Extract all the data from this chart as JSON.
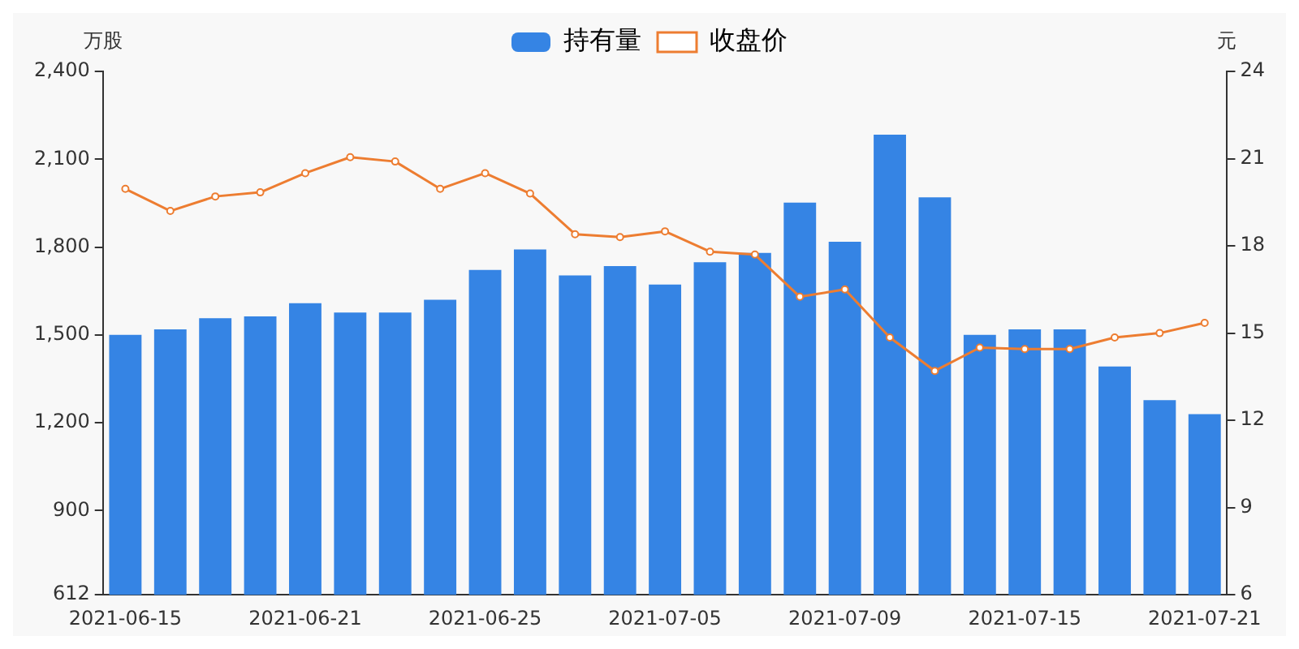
{
  "chart_data": {
    "type": "bar",
    "ylabel": "万股",
    "y2label": "元",
    "categories": [
      "2021-06-15",
      null,
      null,
      null,
      "2021-06-21",
      null,
      null,
      null,
      "2021-06-25",
      null,
      null,
      null,
      "2021-07-05",
      null,
      null,
      null,
      "2021-07-09",
      null,
      null,
      null,
      "2021-07-15",
      null,
      null,
      null,
      "2021-07-21"
    ],
    "series": [
      {
        "name": "持有量",
        "color": "#3584e4",
        "values": [
          1500,
          1519,
          1557,
          1563,
          1608,
          1576,
          1576,
          1620,
          1722,
          1792,
          1703,
          1735,
          1672,
          1748,
          1780,
          1952,
          1818,
          2184,
          1970,
          1500,
          1519,
          1519,
          1392,
          1277,
          1229
        ]
      },
      {
        "name": "收盘价",
        "type": "line",
        "axis": "y2",
        "color": "#ed7d31",
        "marker": "circle",
        "values": [
          19.96,
          19.2,
          19.7,
          19.84,
          20.5,
          21.05,
          20.9,
          19.96,
          20.5,
          19.8,
          18.4,
          18.3,
          18.5,
          17.8,
          17.7,
          16.25,
          16.5,
          14.85,
          13.7,
          14.5,
          14.45,
          14.45,
          14.85,
          15.0,
          15.35
        ]
      }
    ],
    "ylim": [
      612,
      2400
    ],
    "yticks": [
      612,
      900,
      {
        "value": 1200,
        "label": "1,200"
      },
      {
        "value": 1500,
        "label": "1,500"
      },
      {
        "value": 1800,
        "label": "1,800"
      },
      {
        "value": 2100,
        "label": "2,100"
      },
      {
        "value": 2400,
        "label": "2,400"
      }
    ],
    "y2lim": [
      6,
      24
    ],
    "y2ticks": [
      6,
      9,
      12,
      15,
      18,
      21,
      24
    ],
    "grid": false,
    "legend": "top"
  }
}
